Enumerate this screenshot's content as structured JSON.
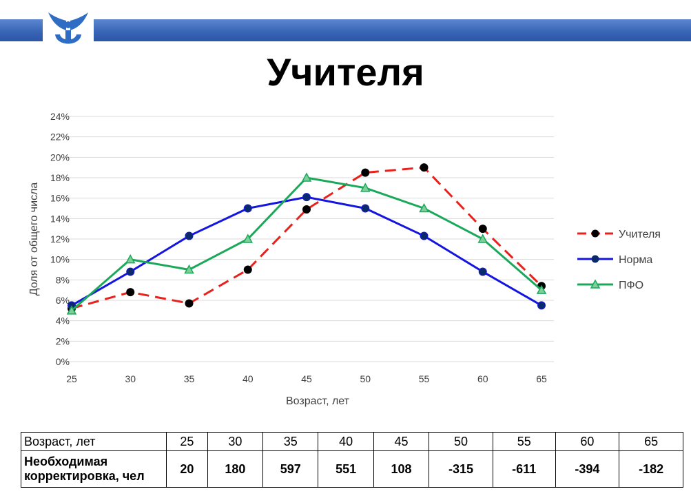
{
  "title": "Учителя",
  "colors": {
    "band": "#3a66b8",
    "teachers": "#e8211d",
    "norm": "#1515e0",
    "pfo": "#1aa85a",
    "grid": "#d9d9d9"
  },
  "chart_data": {
    "type": "line",
    "xlabel": "Возраст, лет",
    "ylabel": "Доля от общего числа",
    "x": [
      25,
      30,
      35,
      40,
      45,
      50,
      55,
      60,
      65
    ],
    "ylim": [
      0,
      24
    ],
    "yticks": [
      "0%",
      "2%",
      "4%",
      "6%",
      "8%",
      "10%",
      "12%",
      "14%",
      "16%",
      "18%",
      "20%",
      "22%",
      "24%"
    ],
    "grid": true,
    "legend_position": "right",
    "series": [
      {
        "name": "Учителя",
        "style": "dashed",
        "marker": "circle",
        "values": [
          5.2,
          6.8,
          5.7,
          9.0,
          14.9,
          18.5,
          19.0,
          13.0,
          7.4
        ]
      },
      {
        "name": "Норма",
        "style": "solid",
        "marker": "circle",
        "values": [
          5.5,
          8.8,
          12.3,
          15.0,
          16.1,
          15.0,
          12.3,
          8.8,
          5.5
        ]
      },
      {
        "name": "ПФО",
        "style": "solid",
        "marker": "triangle",
        "values": [
          5.0,
          10.0,
          9.0,
          12.0,
          18.0,
          17.0,
          15.0,
          12.0,
          7.0
        ]
      }
    ]
  },
  "table": {
    "row1_header": "Возраст, лет",
    "row2_header": "Необходимая корректировка, чел",
    "ages": [
      "25",
      "30",
      "35",
      "40",
      "45",
      "50",
      "55",
      "60",
      "65"
    ],
    "corrections": [
      "20",
      "180",
      "597",
      "551",
      "108",
      "-315",
      "-611",
      "-394",
      "-182"
    ]
  }
}
